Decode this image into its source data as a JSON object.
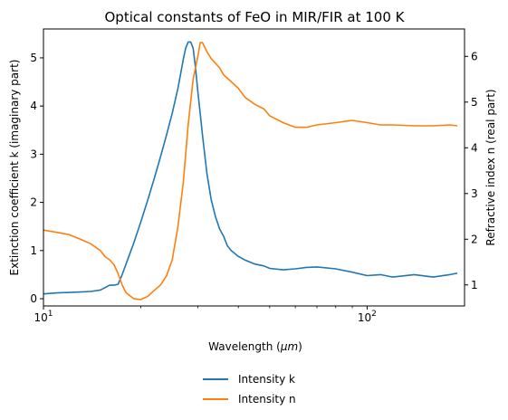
{
  "chart_data": {
    "type": "line",
    "title": "Optical constants of FeO in MIR/FIR at 100 K",
    "xlabel": "Wavelength ($\\mu m$)",
    "xlabel_parts": {
      "before": "Wavelength (",
      "symbol": "μm",
      "after": ")"
    },
    "ylabel_left": "Extinction coefficient k (imaginary part)",
    "ylabel_right": "Refractive index n (real part)",
    "x_scale": "log",
    "xlim": [
      10,
      200
    ],
    "ylim_left": [
      -0.15,
      5.6
    ],
    "ylim_right": [
      0.54,
      6.6
    ],
    "x_ticks": [
      {
        "value": 10,
        "base": "10",
        "exp": "1"
      },
      {
        "value": 100,
        "base": "10",
        "exp": "2"
      }
    ],
    "y_ticks_left": [
      0,
      1,
      2,
      3,
      4,
      5
    ],
    "y_ticks_right": [
      1,
      2,
      3,
      4,
      5,
      6
    ],
    "grid": false,
    "legend_position": "below plot, centered",
    "series": [
      {
        "name": "Intensity k",
        "axis": "left",
        "color": "#1f77b4",
        "x": [
          10,
          11,
          12,
          13,
          14,
          15,
          16,
          16.5,
          17,
          17.5,
          18,
          19,
          20,
          21,
          22,
          23,
          24,
          25,
          26,
          26.5,
          27,
          27.5,
          28,
          28.5,
          29,
          29.5,
          30,
          31,
          32,
          33,
          34,
          35,
          36,
          37,
          38,
          40,
          42,
          45,
          48,
          50,
          55,
          60,
          65,
          70,
          80,
          90,
          100,
          110,
          120,
          140,
          160,
          180,
          190
        ],
        "y": [
          0.1,
          0.12,
          0.13,
          0.14,
          0.15,
          0.18,
          0.28,
          0.28,
          0.3,
          0.5,
          0.72,
          1.15,
          1.6,
          2.05,
          2.5,
          2.95,
          3.4,
          3.85,
          4.35,
          4.65,
          4.95,
          5.2,
          5.33,
          5.33,
          5.2,
          4.8,
          4.3,
          3.4,
          2.6,
          2.05,
          1.7,
          1.45,
          1.3,
          1.1,
          1.0,
          0.88,
          0.8,
          0.72,
          0.68,
          0.63,
          0.6,
          0.62,
          0.65,
          0.66,
          0.62,
          0.55,
          0.48,
          0.5,
          0.45,
          0.5,
          0.45,
          0.5,
          0.53
        ]
      },
      {
        "name": "Intensity n",
        "axis": "right",
        "color": "#ff7f0e",
        "x": [
          10,
          11,
          12,
          13,
          14,
          15,
          15.5,
          16,
          16.5,
          17,
          17.5,
          18,
          19,
          20,
          21,
          22,
          23,
          24,
          25,
          26,
          27,
          28,
          29,
          30,
          30.5,
          31,
          32,
          33,
          34,
          35,
          36,
          38,
          40,
          42,
          45,
          48,
          50,
          55,
          60,
          65,
          70,
          80,
          90,
          100,
          110,
          120,
          140,
          160,
          180,
          190
        ],
        "y": [
          2.2,
          2.15,
          2.1,
          2.0,
          1.9,
          1.75,
          1.62,
          1.55,
          1.45,
          1.25,
          1.0,
          0.83,
          0.7,
          0.68,
          0.75,
          0.88,
          1.0,
          1.2,
          1.55,
          2.25,
          3.2,
          4.5,
          5.5,
          6.0,
          6.3,
          6.3,
          6.1,
          5.95,
          5.85,
          5.75,
          5.6,
          5.45,
          5.3,
          5.1,
          4.95,
          4.85,
          4.7,
          4.55,
          4.45,
          4.45,
          4.5,
          4.55,
          4.6,
          4.55,
          4.5,
          4.5,
          4.48,
          4.48,
          4.5,
          4.48
        ]
      }
    ]
  }
}
